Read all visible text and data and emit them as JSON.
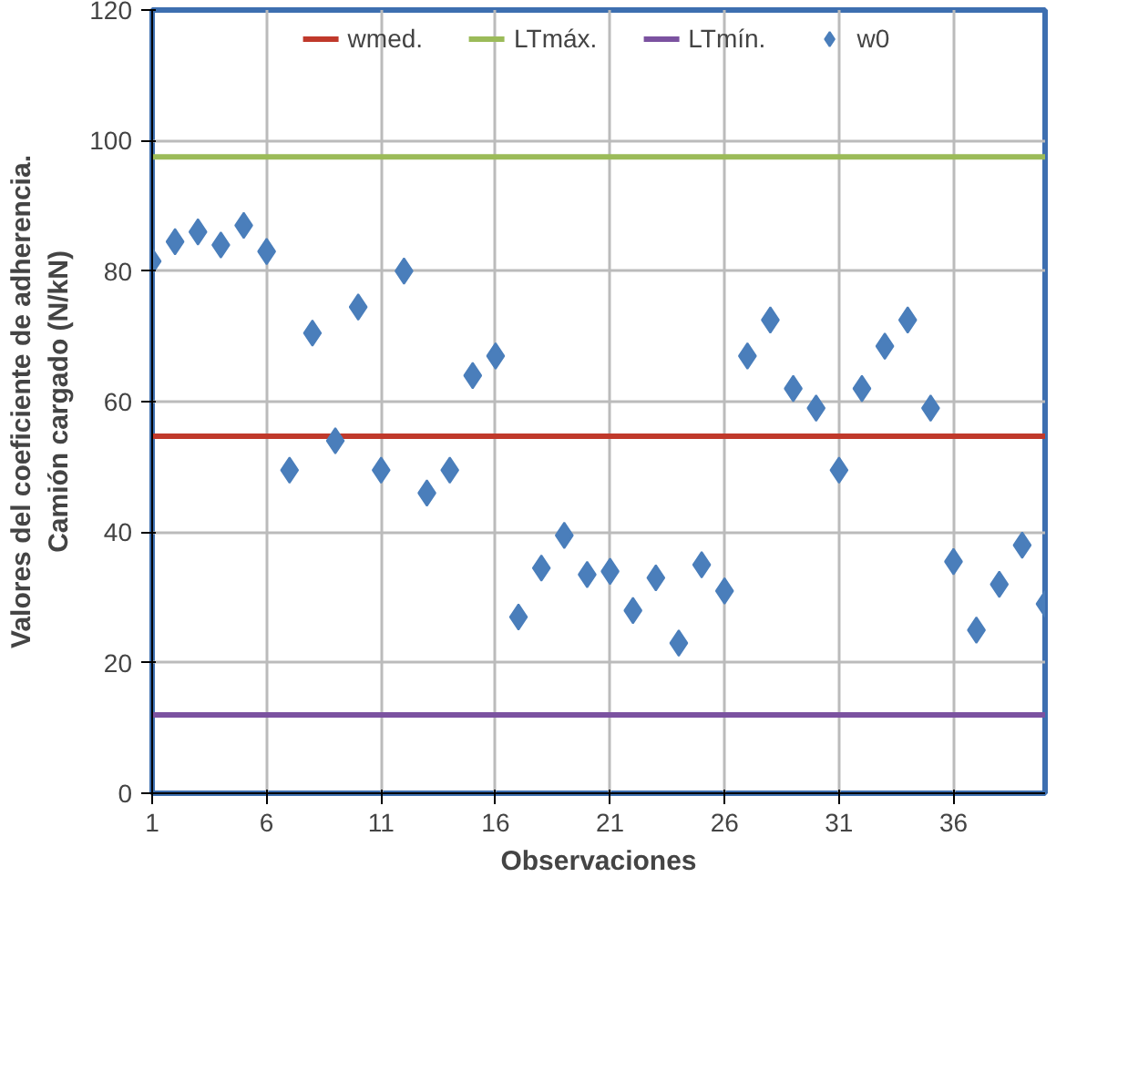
{
  "chart_data": {
    "type": "scatter",
    "xlabel": "Observaciones",
    "ylabel": "Valores del coeficiente de adherencia.\nCamión cargado (N/kN)",
    "xlim": [
      1,
      40
    ],
    "ylim": [
      0,
      120
    ],
    "xticks": [
      1,
      6,
      11,
      16,
      21,
      26,
      31,
      36
    ],
    "yticks": [
      0,
      20,
      40,
      60,
      80,
      100,
      120
    ],
    "grid": true,
    "legend": "top",
    "series": [
      {
        "name": "wmed.",
        "type": "line",
        "color": "#c0392b",
        "x": [
          1,
          40
        ],
        "values": [
          54.7,
          54.7
        ]
      },
      {
        "name": "LTmáx.",
        "type": "line",
        "color": "#9bbb59",
        "x": [
          1,
          40
        ],
        "values": [
          97.5,
          97.5
        ]
      },
      {
        "name": "LTmín.",
        "type": "line",
        "color": "#7b52a0",
        "x": [
          1,
          40
        ],
        "values": [
          12,
          12
        ]
      },
      {
        "name": "w0",
        "type": "scatter",
        "marker": "diamond",
        "color": "#4a7ebb",
        "x": [
          1,
          2,
          3,
          4,
          5,
          6,
          7,
          8,
          9,
          10,
          11,
          12,
          13,
          14,
          15,
          16,
          17,
          18,
          19,
          20,
          21,
          22,
          23,
          24,
          25,
          26,
          27,
          28,
          29,
          30,
          31,
          32,
          33,
          34,
          35,
          36,
          37,
          38,
          39,
          40
        ],
        "values": [
          81.5,
          84.5,
          86,
          84,
          87,
          83,
          49.5,
          70.5,
          54,
          74.5,
          49.5,
          80,
          46,
          49.5,
          64,
          67,
          27,
          34.5,
          39.5,
          33.5,
          34,
          28,
          33,
          23,
          35,
          31,
          67,
          72.5,
          62,
          59,
          49.5,
          62,
          68.5,
          72.5,
          59,
          35.5,
          25,
          32,
          38,
          29
        ]
      }
    ]
  }
}
